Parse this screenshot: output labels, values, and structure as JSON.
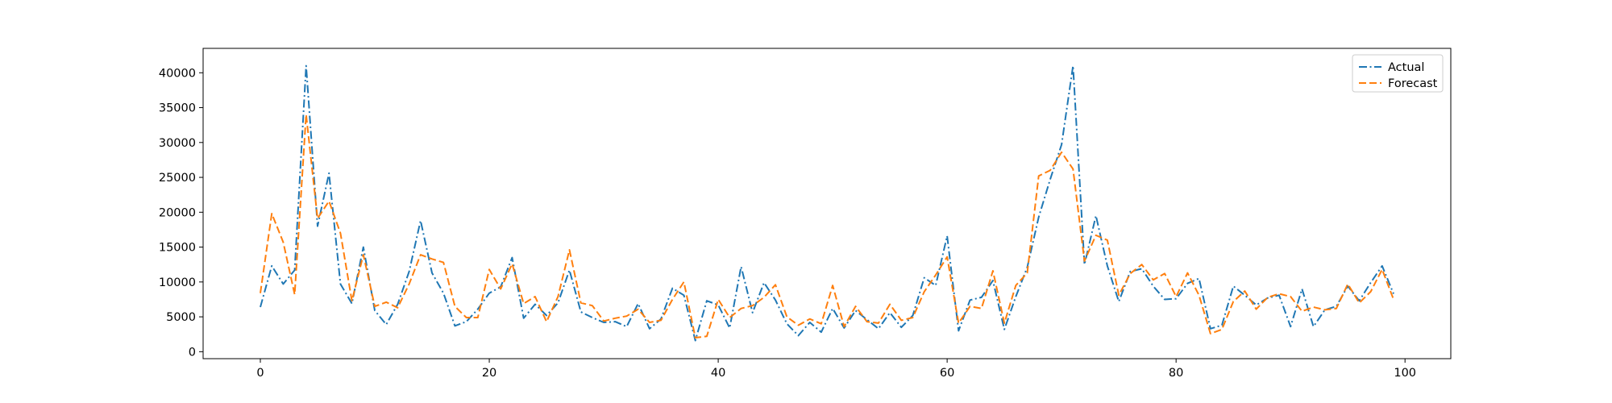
{
  "chart_data": {
    "type": "line",
    "title": "",
    "xlabel": "",
    "ylabel": "",
    "xlim": [
      -5,
      104
    ],
    "ylim": [
      -1000,
      43500
    ],
    "xticks": [
      0,
      20,
      40,
      60,
      80,
      100
    ],
    "yticks": [
      0,
      5000,
      10000,
      15000,
      20000,
      25000,
      30000,
      35000,
      40000
    ],
    "legend_position": "top-right",
    "grid": false,
    "x": [
      0,
      1,
      2,
      3,
      4,
      5,
      6,
      7,
      8,
      9,
      10,
      11,
      12,
      13,
      14,
      15,
      16,
      17,
      18,
      19,
      20,
      21,
      22,
      23,
      24,
      25,
      26,
      27,
      28,
      29,
      30,
      31,
      32,
      33,
      34,
      35,
      36,
      37,
      38,
      39,
      40,
      41,
      42,
      43,
      44,
      45,
      46,
      47,
      48,
      49,
      50,
      51,
      52,
      53,
      54,
      55,
      56,
      57,
      58,
      59,
      60,
      61,
      62,
      63,
      64,
      65,
      66,
      67,
      68,
      69,
      70,
      71,
      72,
      73,
      74,
      75,
      76,
      77,
      78,
      79,
      80,
      81,
      82,
      83,
      84,
      85,
      86,
      87,
      88,
      89,
      90,
      91,
      92,
      93,
      94,
      95,
      96,
      97,
      98,
      99
    ],
    "series": [
      {
        "name": "Actual",
        "color": "#1f77b4",
        "linestyle": "dashdot",
        "values": [
          6400,
          12300,
          9700,
          11700,
          41000,
          18000,
          25600,
          9700,
          6900,
          15000,
          5900,
          3900,
          6800,
          11500,
          18800,
          11300,
          8400,
          3700,
          4300,
          6100,
          8400,
          9300,
          13500,
          4800,
          6800,
          5200,
          7000,
          11700,
          5700,
          4900,
          4200,
          4300,
          3600,
          6900,
          3300,
          4700,
          9100,
          8100,
          1600,
          7300,
          6700,
          3400,
          12200,
          5600,
          9900,
          7400,
          4000,
          2300,
          4200,
          2800,
          6200,
          3400,
          5900,
          4600,
          3300,
          5600,
          3500,
          5200,
          10600,
          9500,
          16600,
          3000,
          7400,
          7800,
          10200,
          3200,
          7900,
          12100,
          19300,
          24700,
          29700,
          41000,
          12500,
          19500,
          12300,
          7200,
          11500,
          11900,
          9400,
          7500,
          7600,
          9800,
          10500,
          3300,
          3800,
          9400,
          8100,
          6700,
          7700,
          8100,
          3600,
          9000,
          3600,
          6000,
          6500,
          9400,
          7300,
          9900,
          12300,
          8300
        ]
      },
      {
        "name": "Forecast",
        "color": "#ff7f0e",
        "linestyle": "dashed",
        "values": [
          8400,
          19800,
          15700,
          8200,
          34000,
          19100,
          21600,
          17000,
          7300,
          13900,
          6500,
          7100,
          6300,
          9700,
          13900,
          13300,
          12800,
          6500,
          4900,
          4900,
          11800,
          9000,
          12600,
          6900,
          7900,
          4300,
          7900,
          14600,
          7000,
          6600,
          4400,
          4800,
          5100,
          6100,
          4200,
          4500,
          7500,
          10000,
          2000,
          2200,
          7500,
          4900,
          6200,
          6600,
          7800,
          9600,
          5000,
          3800,
          4700,
          4000,
          9500,
          3600,
          6500,
          4300,
          4100,
          6800,
          4500,
          4900,
          8600,
          11000,
          13600,
          4100,
          6500,
          6200,
          11600,
          4100,
          9500,
          11300,
          25200,
          26000,
          28600,
          26200,
          13000,
          16700,
          16000,
          8100,
          11200,
          12500,
          10300,
          11200,
          7900,
          11300,
          8100,
          2600,
          3200,
          7200,
          8700,
          6100,
          7800,
          8300,
          7900,
          5800,
          6400,
          6000,
          6200,
          9700,
          7000,
          8600,
          11800,
          7500
        ]
      }
    ]
  }
}
